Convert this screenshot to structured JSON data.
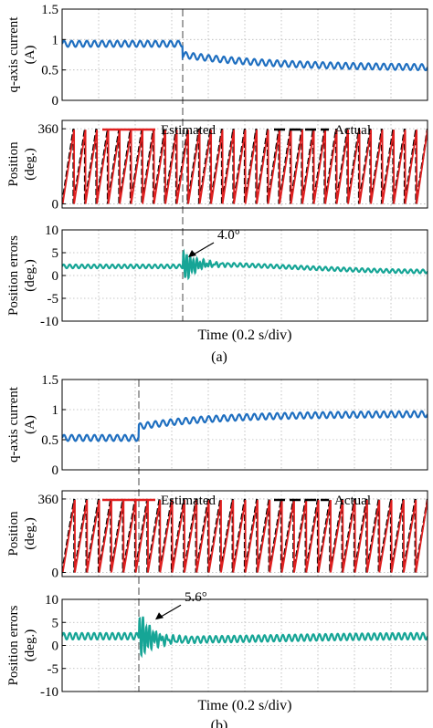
{
  "chart_data": [
    {
      "panel": "a",
      "caption": "(a)",
      "xlabel": "Time (0.2 s/div)",
      "x_divisions": 10,
      "step_x_fraction": 0.33,
      "subplots": [
        {
          "type": "line",
          "ylabel": [
            "q-axis current",
            "(A)"
          ],
          "ylim": [
            0,
            1.5
          ],
          "yticks": [
            0,
            0.5,
            1,
            1.5
          ],
          "ytick_labels": [
            "0",
            "0.5",
            "1",
            "1.5"
          ],
          "grid": true,
          "series": [
            {
              "key": "current",
              "color": "#1f6fc0",
              "before": 0.93,
              "jump_to": 0.75,
              "final": 0.53,
              "ripple": 0.05,
              "tau": 0.25,
              "cycles": 48
            }
          ]
        },
        {
          "type": "line",
          "ylabel": [
            "Position",
            "(deg.)"
          ],
          "ylim": [
            -20,
            400
          ],
          "yticks": [
            0,
            360
          ],
          "ytick_labels": [
            "0",
            "360"
          ],
          "grid": true,
          "legend": [
            {
              "label": "Estimated",
              "color": "#e02020",
              "dash": "solid"
            },
            {
              "label": "Actual",
              "color": "#000000",
              "dash": "dashed"
            }
          ],
          "series": [
            {
              "key": "actual",
              "color": "#000000",
              "periods": 32
            },
            {
              "key": "estimated",
              "color": "#e02020",
              "periods": 32
            }
          ]
        },
        {
          "type": "line",
          "ylabel": [
            "Position errors",
            "(deg.)"
          ],
          "ylim": [
            -10,
            10
          ],
          "yticks": [
            -10,
            -5,
            0,
            5,
            10
          ],
          "ytick_labels": [
            "-10",
            "-5",
            "0",
            "5",
            "10"
          ],
          "grid": true,
          "annotation": {
            "text": "4.0°",
            "x_fraction": 0.345,
            "value": 4.0
          },
          "series": [
            {
              "key": "error",
              "color": "#16a596",
              "mean_start": 2.0,
              "mean_end": 0.9,
              "mean_mid": 2.5,
              "transient_amp": 3.5,
              "ripple": 0.4
            }
          ]
        }
      ]
    },
    {
      "panel": "b",
      "caption": "(b)",
      "xlabel": "Time (0.2 s/div)",
      "x_divisions": 10,
      "step_x_fraction": 0.21,
      "subplots": [
        {
          "type": "line",
          "ylabel": [
            "q-axis current",
            "(A)"
          ],
          "ylim": [
            0,
            1.5
          ],
          "yticks": [
            0,
            0.5,
            1,
            1.5
          ],
          "ytick_labels": [
            "0",
            "0.5",
            "1",
            "1.5"
          ],
          "grid": true,
          "series": [
            {
              "key": "current",
              "color": "#1f6fc0",
              "before": 0.53,
              "jump_to": 0.72,
              "final": 0.93,
              "ripple": 0.05,
              "tau": 0.22,
              "cycles": 48
            }
          ]
        },
        {
          "type": "line",
          "ylabel": [
            "Position",
            "(deg.)"
          ],
          "ylim": [
            -20,
            400
          ],
          "yticks": [
            0,
            360
          ],
          "ytick_labels": [
            "0",
            "360"
          ],
          "grid": true,
          "legend": [
            {
              "label": "Estimated",
              "color": "#e02020",
              "dash": "solid"
            },
            {
              "label": "Actual",
              "color": "#000000",
              "dash": "dashed"
            }
          ],
          "series": [
            {
              "key": "actual",
              "color": "#000000",
              "periods": 30
            },
            {
              "key": "estimated",
              "color": "#e02020",
              "periods": 30
            }
          ]
        },
        {
          "type": "line",
          "ylabel": [
            "Position errors",
            "(deg.)"
          ],
          "ylim": [
            -10,
            10
          ],
          "yticks": [
            -10,
            -5,
            0,
            5,
            10
          ],
          "ytick_labels": [
            "-10",
            "-5",
            "0",
            "5",
            "10"
          ],
          "grid": true,
          "annotation": {
            "text": "5.6°",
            "x_fraction": 0.255,
            "value": 5.6
          },
          "series": [
            {
              "key": "error",
              "color": "#16a596",
              "mean_start": 2.0,
              "mean_end": 2.0,
              "mean_mid": 1.2,
              "transient_amp": 5.0,
              "ripple": 0.7
            }
          ]
        }
      ]
    }
  ]
}
